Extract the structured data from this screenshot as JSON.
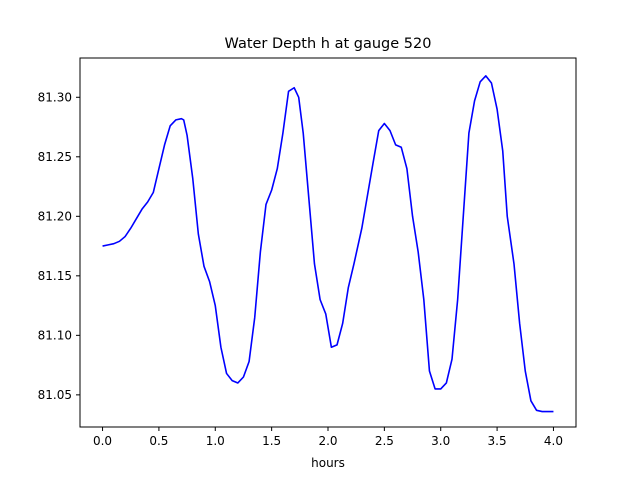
{
  "chart_data": {
    "type": "line",
    "title": "Water Depth h at gauge 520",
    "xlabel": "hours",
    "ylabel": "",
    "xlim": [
      -0.2,
      4.2
    ],
    "ylim": [
      81.023,
      81.333
    ],
    "xticks": [
      0.0,
      0.5,
      1.0,
      1.5,
      2.0,
      2.5,
      3.0,
      3.5,
      4.0
    ],
    "xtick_labels": [
      "0.0",
      "0.5",
      "1.0",
      "1.5",
      "2.0",
      "2.5",
      "3.0",
      "3.5",
      "4.0"
    ],
    "yticks": [
      81.05,
      81.1,
      81.15,
      81.2,
      81.25,
      81.3
    ],
    "ytick_labels": [
      "81.05",
      "81.10",
      "81.15",
      "81.20",
      "81.25",
      "81.30"
    ],
    "grid": false,
    "series": [
      {
        "color": "#0000ff",
        "x": [
          0.0,
          0.05,
          0.1,
          0.15,
          0.2,
          0.25,
          0.3,
          0.35,
          0.4,
          0.45,
          0.5,
          0.55,
          0.6,
          0.65,
          0.7,
          0.72,
          0.75,
          0.8,
          0.85,
          0.9,
          0.95,
          1.0,
          1.05,
          1.1,
          1.15,
          1.2,
          1.25,
          1.3,
          1.35,
          1.4,
          1.45,
          1.5,
          1.55,
          1.6,
          1.65,
          1.7,
          1.74,
          1.78,
          1.83,
          1.88,
          1.93,
          1.98,
          2.03,
          2.08,
          2.13,
          2.18,
          2.23,
          2.3,
          2.4,
          2.45,
          2.5,
          2.55,
          2.6,
          2.65,
          2.7,
          2.75,
          2.8,
          2.85,
          2.9,
          2.95,
          3.0,
          3.05,
          3.1,
          3.15,
          3.2,
          3.25,
          3.3,
          3.35,
          3.4,
          3.45,
          3.5,
          3.55,
          3.59,
          3.65,
          3.7,
          3.75,
          3.8,
          3.85,
          3.9,
          3.95,
          4.0
        ],
        "y": [
          81.175,
          81.176,
          81.177,
          81.179,
          81.183,
          81.19,
          81.198,
          81.206,
          81.212,
          81.22,
          81.24,
          81.26,
          81.276,
          81.281,
          81.282,
          81.281,
          81.268,
          81.232,
          81.185,
          81.158,
          81.145,
          81.125,
          81.09,
          81.068,
          81.062,
          81.06,
          81.065,
          81.078,
          81.115,
          81.17,
          81.21,
          81.222,
          81.24,
          81.27,
          81.305,
          81.308,
          81.3,
          81.27,
          81.215,
          81.16,
          81.13,
          81.118,
          81.09,
          81.092,
          81.11,
          81.14,
          81.16,
          81.19,
          81.245,
          81.272,
          81.278,
          81.272,
          81.26,
          81.258,
          81.24,
          81.2,
          81.17,
          81.13,
          81.07,
          81.055,
          81.055,
          81.06,
          81.08,
          81.13,
          81.2,
          81.27,
          81.297,
          81.313,
          81.318,
          81.312,
          81.29,
          81.255,
          81.2,
          81.16,
          81.11,
          81.07,
          81.045,
          81.037,
          81.036,
          81.036,
          81.036
        ]
      }
    ]
  }
}
